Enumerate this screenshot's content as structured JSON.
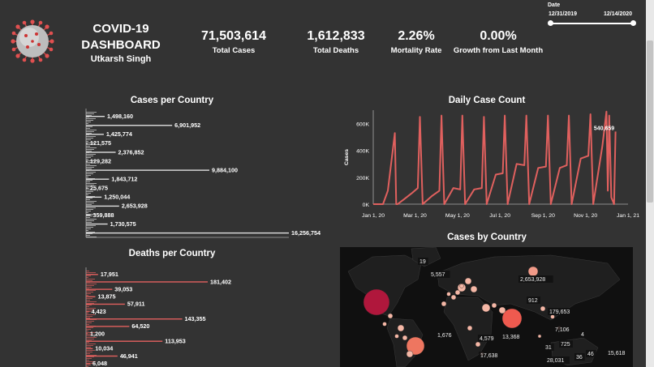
{
  "header": {
    "title_line1": "COVID-19",
    "title_line2": "DASHBOARD",
    "author": "Utkarsh Singh",
    "logo_icon": "virus-icon"
  },
  "kpis": [
    {
      "value": "71,503,614",
      "label": "Total Cases"
    },
    {
      "value": "1,612,833",
      "label": "Total Deaths"
    },
    {
      "value": "2.26%",
      "label": "Mortality Rate"
    },
    {
      "value": "0.00%",
      "label": "Growth from Last Month"
    }
  ],
  "date_filter": {
    "label": "Date",
    "start": "12/31/2019",
    "end": "12/14/2020",
    "range_fraction": [
      0,
      1
    ]
  },
  "colors": {
    "background": "#333333",
    "bars_cases": "#dddddd",
    "bars_deaths": "#e0605e",
    "line": "#e0605e",
    "map_bg": "#111111"
  },
  "chart_data": [
    {
      "type": "bar",
      "title": "Cases per Country",
      "orientation": "horizontal",
      "labeled_values": [
        1498160,
        6901952,
        1425774,
        121575,
        2376852,
        129282,
        9884100,
        1843712,
        25675,
        1250044,
        2653928,
        359888,
        1730575,
        16256754
      ],
      "labels": [
        "1,498,160",
        "6,901,952",
        "1,425,774",
        "121,575",
        "2,376,852",
        "129,282",
        "9,884,100",
        "1,843,712",
        "25,675",
        "1,250,044",
        "2,653,928",
        "359,888",
        "1,730,575",
        "16,256,754"
      ]
    },
    {
      "type": "bar",
      "title": "Deaths per Country",
      "orientation": "horizontal",
      "labeled_values": [
        17951,
        181402,
        39053,
        13875,
        57911,
        4423,
        143355,
        64520,
        1200,
        113953,
        10034,
        46941,
        6048
      ],
      "labels": [
        "17,951",
        "181,402",
        "39,053",
        "13,875",
        "57,911",
        "4,423",
        "143,355",
        "64,520",
        "1,200",
        "113,953",
        "10,034",
        "46,941",
        "6,048"
      ]
    },
    {
      "type": "line",
      "title": "Daily Case Count",
      "xlabel": "",
      "ylabel": "Cases",
      "ylim": [
        0,
        700000
      ],
      "yticks": [
        "0K",
        "200K",
        "400K",
        "600K"
      ],
      "xticks": [
        "Jan 1, 20",
        "Mar 1, 20",
        "May 1, 20",
        "Jul 1, 20",
        "Sep 1, 20",
        "Nov 1, 20",
        "Jan 1, 21"
      ],
      "annotation": "540,659",
      "x": [
        "2020-01-01",
        "2020-01-15",
        "2020-01-22",
        "2020-02-01",
        "2020-02-03",
        "2020-02-05",
        "2020-02-15",
        "2020-02-25",
        "2020-03-05",
        "2020-03-08",
        "2020-03-12",
        "2020-03-25",
        "2020-04-05",
        "2020-04-08",
        "2020-04-12",
        "2020-04-25",
        "2020-05-05",
        "2020-05-08",
        "2020-05-12",
        "2020-05-25",
        "2020-06-05",
        "2020-06-08",
        "2020-06-12",
        "2020-06-25",
        "2020-07-05",
        "2020-07-08",
        "2020-07-12",
        "2020-07-25",
        "2020-08-05",
        "2020-08-08",
        "2020-08-12",
        "2020-08-25",
        "2020-09-05",
        "2020-09-08",
        "2020-09-12",
        "2020-09-25",
        "2020-10-05",
        "2020-10-08",
        "2020-10-12",
        "2020-10-25",
        "2020-11-05",
        "2020-11-08",
        "2020-11-12",
        "2020-11-25",
        "2020-12-01",
        "2020-12-03",
        "2020-12-05",
        "2020-12-08",
        "2020-12-12",
        "2020-12-14"
      ],
      "values": [
        0,
        0,
        100000,
        530000,
        0,
        0,
        40000,
        80000,
        120000,
        650000,
        0,
        60000,
        100000,
        660000,
        0,
        120000,
        110000,
        660000,
        0,
        110000,
        120000,
        650000,
        0,
        220000,
        230000,
        660000,
        0,
        300000,
        290000,
        660000,
        0,
        270000,
        280000,
        660000,
        0,
        270000,
        290000,
        660000,
        0,
        340000,
        360000,
        670000,
        0,
        430000,
        690000,
        100000,
        660000,
        50000,
        0,
        540659
      ]
    }
  ],
  "map": {
    "title": "Cases by Country",
    "labels": [
      "19",
      "5,557",
      "2,653,928",
      "912",
      "179,653",
      "1,676",
      "4,579",
      "13,368",
      "7,106",
      "4",
      "725",
      "31",
      "36",
      "46",
      "15,618",
      "17,638",
      "28,031"
    ]
  }
}
